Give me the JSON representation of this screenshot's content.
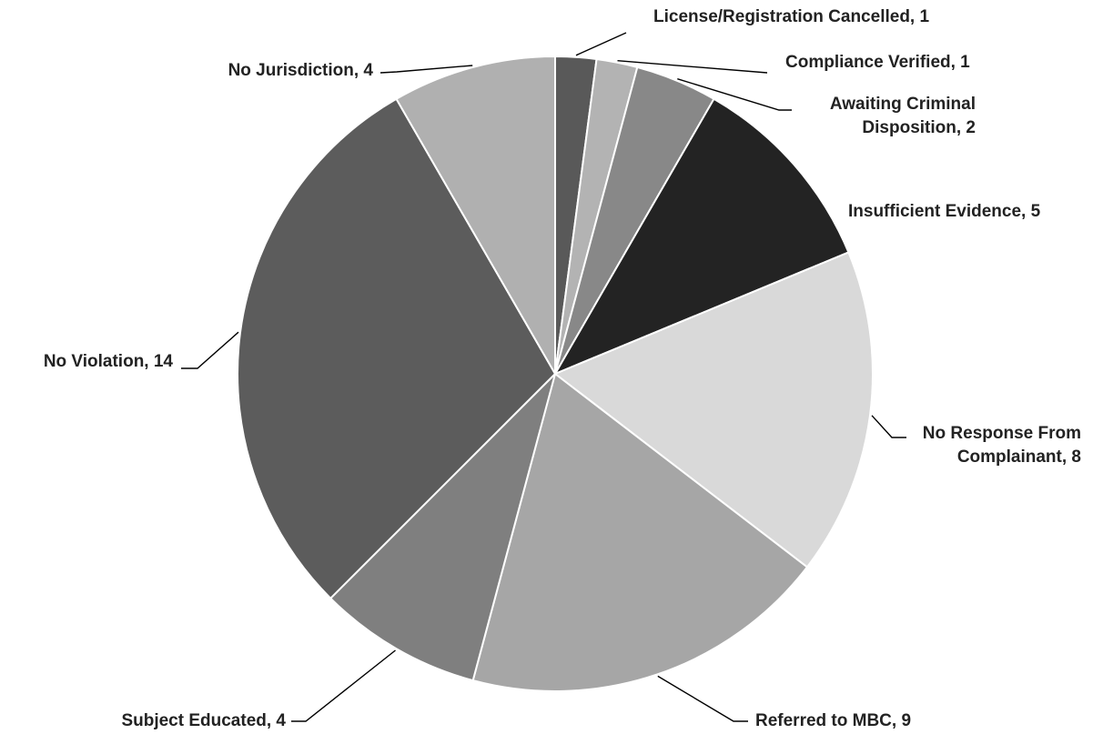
{
  "chart_data": {
    "type": "pie",
    "title": "",
    "start": "12-o-clock",
    "direction": "clockwise",
    "slices": [
      {
        "lines": [
          "License/Registration Cancelled, 1"
        ],
        "category": "License/Registration Cancelled",
        "value": 1,
        "color": "#595959"
      },
      {
        "lines": [
          "Compliance Verified, 1"
        ],
        "category": "Compliance Verified",
        "value": 1,
        "color": "#b3b3b3"
      },
      {
        "lines": [
          "Awaiting Criminal",
          "Disposition, 2"
        ],
        "category": "Awaiting Criminal Disposition",
        "value": 2,
        "color": "#888888"
      },
      {
        "lines": [
          "Insufficient Evidence, 5"
        ],
        "category": "Insufficient Evidence",
        "value": 5,
        "color": "#232323"
      },
      {
        "lines": [
          "No Response From",
          "Complainant, 8"
        ],
        "category": "No Response From Complainant",
        "value": 8,
        "color": "#d9d9d9"
      },
      {
        "lines": [
          "Referred to MBC, 9"
        ],
        "category": "Referred to MBC",
        "value": 9,
        "color": "#a6a6a6"
      },
      {
        "lines": [
          "Subject Educated, 4"
        ],
        "category": "Subject Educated",
        "value": 4,
        "color": "#7f7f7f"
      },
      {
        "lines": [
          "No Violation, 14"
        ],
        "category": "No Violation",
        "value": 14,
        "color": "#5c5c5c"
      },
      {
        "lines": [
          "No Jurisdiction, 4"
        ],
        "category": "No Jurisdiction",
        "value": 4,
        "color": "#b0b0b0"
      }
    ]
  }
}
